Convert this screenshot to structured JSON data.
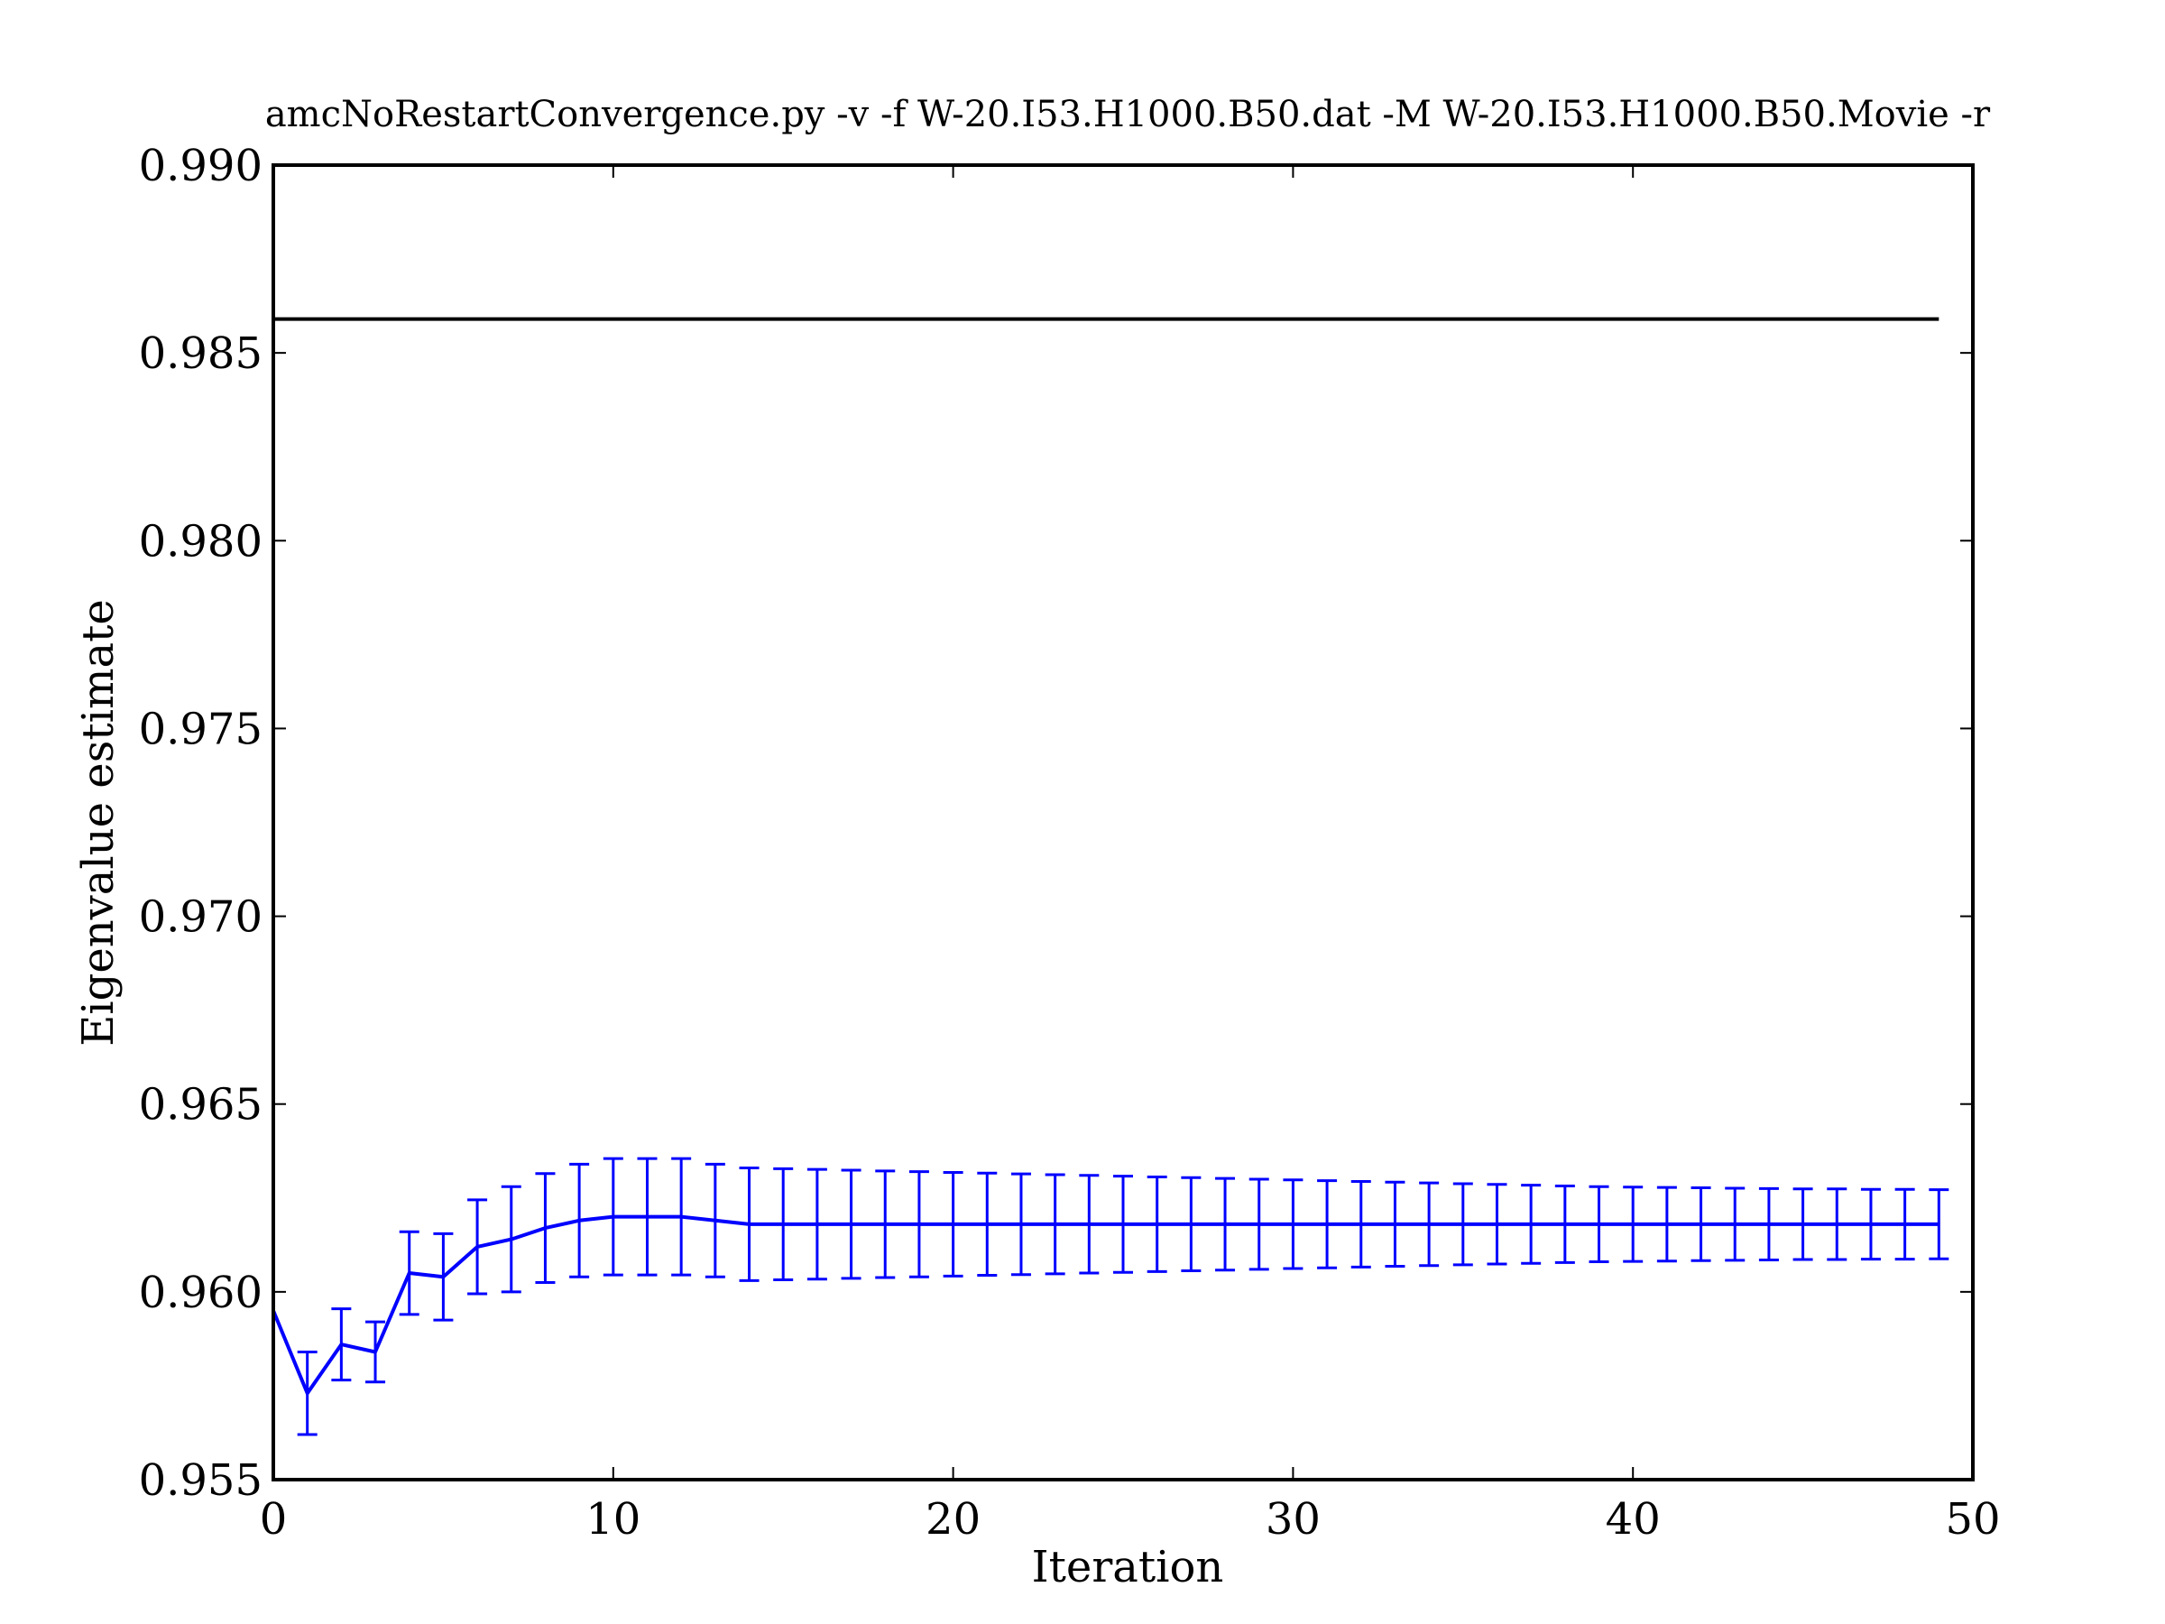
{
  "chart_data": {
    "type": "line",
    "title": "amcNoRestartConvergence.py -v -f W-20.I53.H1000.B50.dat -M W-20.I53.H1000.B50.Movie -r",
    "xlabel": "Iteration",
    "ylabel": "Eigenvalue estimate",
    "xlim": [
      0,
      50
    ],
    "ylim": [
      0.955,
      0.99
    ],
    "xticks": [
      0,
      10,
      20,
      30,
      40,
      50
    ],
    "xtick_labels": [
      "0",
      "10",
      "20",
      "30",
      "40",
      "50"
    ],
    "yticks": [
      0.955,
      0.96,
      0.965,
      0.97,
      0.975,
      0.98,
      0.985,
      0.99
    ],
    "ytick_labels": [
      "0.955",
      "0.960",
      "0.965",
      "0.970",
      "0.975",
      "0.980",
      "0.985",
      "0.990"
    ],
    "grid": false,
    "reference_line": {
      "y": 0.9859,
      "x": [
        0,
        49
      ],
      "color": "#000000"
    },
    "series": [
      {
        "color": "#0000ff",
        "x": [
          0,
          1,
          2,
          3,
          4,
          5,
          6,
          7,
          8,
          9,
          10,
          11,
          12,
          13,
          14,
          15,
          16,
          17,
          18,
          19,
          20,
          21,
          22,
          23,
          24,
          25,
          26,
          27,
          28,
          29,
          30,
          31,
          32,
          33,
          34,
          35,
          36,
          37,
          38,
          39,
          40,
          41,
          42,
          43,
          44,
          45,
          46,
          47,
          48,
          49
        ],
        "y": [
          0.9595,
          0.9573,
          0.9586,
          0.9584,
          0.9605,
          0.9604,
          0.9612,
          0.9614,
          0.9617,
          0.9619,
          0.962,
          0.962,
          0.962,
          0.9619,
          0.9618,
          0.9618,
          0.9618,
          0.9618,
          0.9618,
          0.9618,
          0.9618,
          0.9618,
          0.9618,
          0.9618,
          0.9618,
          0.9618,
          0.9618,
          0.9618,
          0.9618,
          0.9618,
          0.9618,
          0.9618,
          0.9618,
          0.9618,
          0.9618,
          0.9618,
          0.9618,
          0.9618,
          0.9618,
          0.9618,
          0.9618,
          0.9618,
          0.9618,
          0.9618,
          0.9618,
          0.9618,
          0.9618,
          0.9618,
          0.9618,
          0.9618
        ],
        "err": [
          0,
          0.0011,
          0.00095,
          0.0008,
          0.0011,
          0.00115,
          0.00125,
          0.0014,
          0.00145,
          0.0015,
          0.00155,
          0.00155,
          0.00155,
          0.0015,
          0.0015,
          0.00148,
          0.00146,
          0.00144,
          0.00142,
          0.0014,
          0.00138,
          0.00136,
          0.00134,
          0.00132,
          0.0013,
          0.00128,
          0.00126,
          0.00124,
          0.00122,
          0.0012,
          0.00118,
          0.00116,
          0.00114,
          0.00112,
          0.0011,
          0.00108,
          0.00106,
          0.00104,
          0.00102,
          0.001,
          0.00099,
          0.00098,
          0.00097,
          0.00096,
          0.00095,
          0.00094,
          0.00094,
          0.00093,
          0.00093,
          0.00092
        ]
      }
    ]
  }
}
